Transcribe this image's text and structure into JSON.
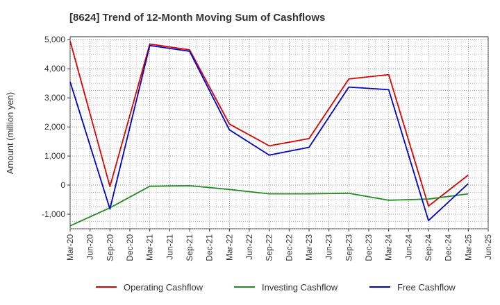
{
  "chart_data": {
    "type": "line",
    "title": "[8624]  Trend of 12-Month Moving Sum of Cashflows",
    "ylabel": "Amount (million yen)",
    "xlabel": "",
    "ylim": [
      -1500,
      5100
    ],
    "yticks": [
      -1000,
      0,
      1000,
      2000,
      3000,
      4000,
      5000
    ],
    "ytick_labels": [
      "-1,000",
      "0",
      "1,000",
      "2,000",
      "3,000",
      "4,000",
      "5,000"
    ],
    "x_ticks": [
      "Mar-20",
      "Jun-20",
      "Sep-20",
      "Dec-20",
      "Mar-21",
      "Jun-21",
      "Sep-21",
      "Dec-21",
      "Mar-22",
      "Jun-22",
      "Sep-22",
      "Dec-22",
      "Mar-23",
      "Jun-23",
      "Sep-23",
      "Dec-23",
      "Mar-24",
      "Jun-24",
      "Sep-24",
      "Dec-24",
      "Mar-25",
      "Jun-25"
    ],
    "grid": true,
    "legend_position": "bottom",
    "x": [
      "Mar-20",
      "Sep-20",
      "Mar-21",
      "Sep-21",
      "Mar-22",
      "Sep-22",
      "Mar-23",
      "Sep-23",
      "Mar-24",
      "Sep-24",
      "Mar-25"
    ],
    "series": [
      {
        "name": "Operating Cashflow",
        "color": "#dd0000",
        "values": [
          4950,
          -50,
          4850,
          4650,
          2100,
          1350,
          1600,
          3650,
          3800,
          -720,
          350
        ]
      },
      {
        "name": "Investing Cashflow",
        "color": "#228b22",
        "values": [
          -1400,
          -780,
          -40,
          -20,
          -150,
          -300,
          -300,
          -280,
          -520,
          -480,
          -300
        ]
      },
      {
        "name": "Free Cashflow",
        "color": "#0000cc",
        "values": [
          3550,
          -820,
          4800,
          4600,
          1900,
          1030,
          1300,
          3370,
          3280,
          -1220,
          50
        ]
      }
    ]
  }
}
